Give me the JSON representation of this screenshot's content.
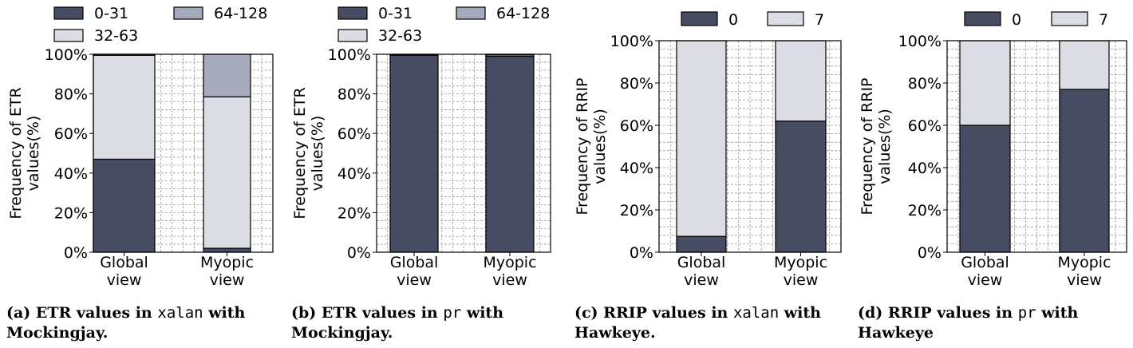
{
  "chart_data": [
    {
      "type": "stacked-bar",
      "categories": [
        "Global\nview",
        "Myopic\nview"
      ],
      "ylabel": "Frequency of ETR\nvalues(%)",
      "ylim": [
        0,
        100
      ],
      "yticks": [
        "0%",
        "20%",
        "40%",
        "60%",
        "80%",
        "100%"
      ],
      "legend": [
        "0-31",
        "64-128",
        "32-63"
      ],
      "series": [
        {
          "name": "0-31",
          "color": "#484c62",
          "values": [
            47,
            2
          ]
        },
        {
          "name": "32-63",
          "color": "#dcdde4",
          "values": [
            52.5,
            76.5
          ]
        },
        {
          "name": "64-128",
          "color": "#a7aabd",
          "values": [
            0.5,
            21.5
          ]
        }
      ],
      "caption": {
        "label": "(a) ETR values in ",
        "code": "xalan",
        "rest": " with Mockingjay."
      }
    },
    {
      "type": "stacked-bar",
      "categories": [
        "Global\nview",
        "Myopic\nview"
      ],
      "ylabel": "Frequency of ETR\nvalues(%)",
      "ylim": [
        0,
        100
      ],
      "yticks": [
        "0%",
        "20%",
        "40%",
        "60%",
        "80%",
        "100%"
      ],
      "legend": [
        "0-31",
        "64-128",
        "32-63"
      ],
      "series": [
        {
          "name": "0-31",
          "color": "#484c62",
          "values": [
            99.5,
            99
          ]
        },
        {
          "name": "32-63",
          "color": "#dcdde4",
          "values": [
            0.3,
            0.7
          ]
        },
        {
          "name": "64-128",
          "color": "#a7aabd",
          "values": [
            0.2,
            0.3
          ]
        }
      ],
      "caption": {
        "label": "(b) ETR values in ",
        "code": "pr",
        "rest": " with Mockingjay."
      }
    },
    {
      "type": "stacked-bar",
      "categories": [
        "Global\nview",
        "Myopic\nview"
      ],
      "ylabel": "Frequency of RRIP\nvalues(%)",
      "ylim": [
        0,
        100
      ],
      "yticks": [
        "0%",
        "20%",
        "40%",
        "60%",
        "80%",
        "100%"
      ],
      "legend": [
        "0",
        "7"
      ],
      "series": [
        {
          "name": "0",
          "color": "#484c62",
          "values": [
            7.5,
            62
          ]
        },
        {
          "name": "7",
          "color": "#dcdde4",
          "values": [
            92.5,
            38
          ]
        }
      ],
      "caption": {
        "label": "(c) RRIP values in ",
        "code": "xalan",
        "rest": " with Hawkeye."
      }
    },
    {
      "type": "stacked-bar",
      "categories": [
        "Global\nview",
        "Myopic\nview"
      ],
      "ylabel": "Frequency of RRIP\nvalues(%)",
      "ylim": [
        0,
        100
      ],
      "yticks": [
        "0%",
        "20%",
        "40%",
        "60%",
        "80%",
        "100%"
      ],
      "legend": [
        "0",
        "7"
      ],
      "series": [
        {
          "name": "0",
          "color": "#484c62",
          "values": [
            60,
            77
          ]
        },
        {
          "name": "7",
          "color": "#dcdde4",
          "values": [
            40,
            23
          ]
        }
      ],
      "caption": {
        "label": "(d) RRIP values in ",
        "code": "pr",
        "rest": " with Hawkeye"
      }
    }
  ]
}
